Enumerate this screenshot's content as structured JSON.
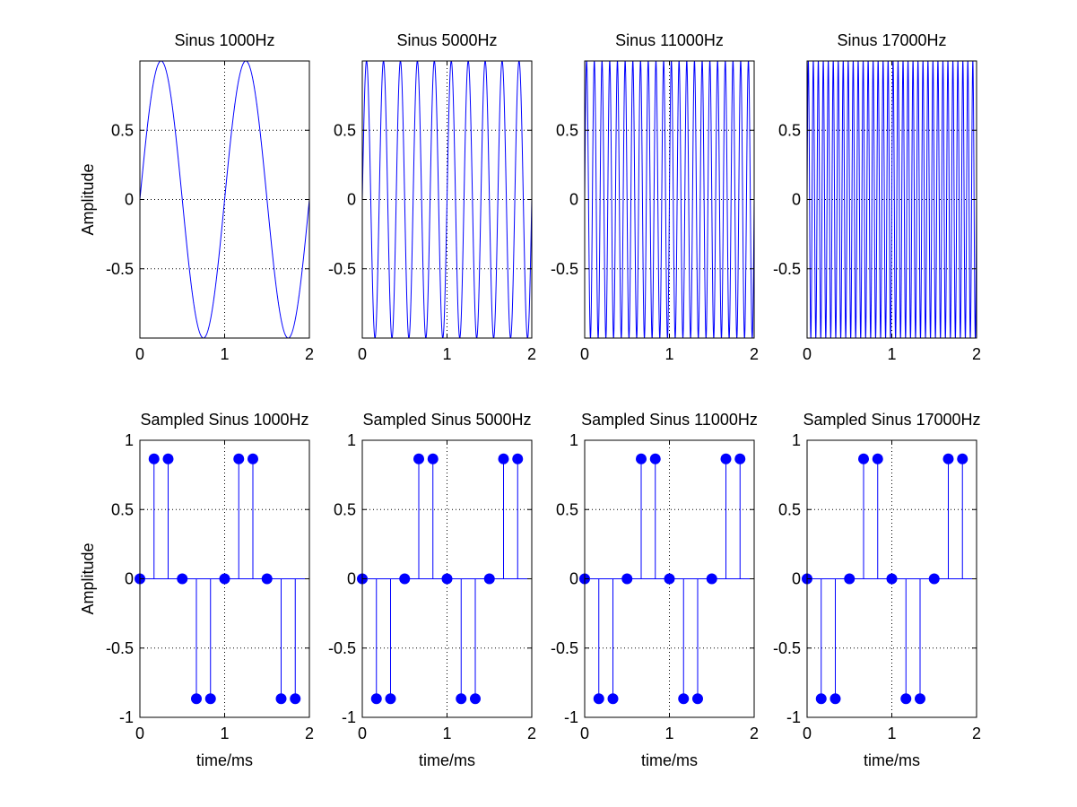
{
  "figure": {
    "colors": {
      "line": "#0000ff",
      "marker": "#0000ff",
      "axis": "#000000",
      "grid": "#000000",
      "background": "#ffffff"
    },
    "grid": true
  },
  "chart_data": [
    {
      "type": "line",
      "title": "Sinus 1000Hz",
      "xlabel": "",
      "ylabel": "Amplitude",
      "xlim": [
        0,
        2
      ],
      "ylim": [
        -1,
        1
      ],
      "xticks": [
        "0",
        "1",
        "2"
      ],
      "yticks": [
        "-0.5",
        "0",
        "0.5"
      ],
      "ytick_values": [
        -0.5,
        0,
        0.5
      ],
      "series": [
        {
          "function": "sin(2*pi*f*t)",
          "frequency_hz": 1000,
          "t_ms": [
            0,
            2
          ]
        }
      ]
    },
    {
      "type": "line",
      "title": "Sinus 5000Hz",
      "xlabel": "",
      "ylabel": "",
      "xlim": [
        0,
        2
      ],
      "ylim": [
        -1,
        1
      ],
      "xticks": [
        "0",
        "1",
        "2"
      ],
      "yticks": [
        "-0.5",
        "0",
        "0.5"
      ],
      "ytick_values": [
        -0.5,
        0,
        0.5
      ],
      "series": [
        {
          "function": "sin(2*pi*f*t)",
          "frequency_hz": 5000,
          "t_ms": [
            0,
            2
          ]
        }
      ]
    },
    {
      "type": "line",
      "title": "Sinus 11000Hz",
      "xlabel": "",
      "ylabel": "",
      "xlim": [
        0,
        2
      ],
      "ylim": [
        -1,
        1
      ],
      "xticks": [
        "0",
        "1",
        "2"
      ],
      "yticks": [
        "-0.5",
        "0",
        "0.5"
      ],
      "ytick_values": [
        -0.5,
        0,
        0.5
      ],
      "series": [
        {
          "function": "sin(2*pi*f*t)",
          "frequency_hz": 11000,
          "t_ms": [
            0,
            2
          ]
        }
      ]
    },
    {
      "type": "line",
      "title": "Sinus 17000Hz",
      "xlabel": "",
      "ylabel": "",
      "xlim": [
        0,
        2
      ],
      "ylim": [
        -1,
        1
      ],
      "xticks": [
        "0",
        "1",
        "2"
      ],
      "yticks": [
        "-0.5",
        "0",
        "0.5"
      ],
      "ytick_values": [
        -0.5,
        0,
        0.5
      ],
      "series": [
        {
          "function": "sin(2*pi*f*t)",
          "frequency_hz": 17000,
          "t_ms": [
            0,
            2
          ]
        }
      ]
    },
    {
      "type": "stem",
      "title": "Sampled Sinus 1000Hz",
      "xlabel": "time/ms",
      "ylabel": "Amplitude",
      "xlim": [
        0,
        2
      ],
      "ylim": [
        -1,
        1
      ],
      "xticks": [
        "0",
        "1",
        "2"
      ],
      "yticks": [
        "-1",
        "-0.5",
        "0",
        "0.5",
        "1"
      ],
      "ytick_values": [
        -1,
        -0.5,
        0,
        0.5,
        1
      ],
      "x": [
        0,
        0.1667,
        0.3333,
        0.5,
        0.6667,
        0.8333,
        1.0,
        1.1667,
        1.3333,
        1.5,
        1.6667,
        1.8333
      ],
      "values": [
        0,
        0.866,
        0.866,
        0,
        -0.866,
        -0.866,
        0,
        0.866,
        0.866,
        0,
        -0.866,
        -0.866
      ]
    },
    {
      "type": "stem",
      "title": "Sampled Sinus 5000Hz",
      "xlabel": "time/ms",
      "ylabel": "",
      "xlim": [
        0,
        2
      ],
      "ylim": [
        -1,
        1
      ],
      "xticks": [
        "0",
        "1",
        "2"
      ],
      "yticks": [
        "-1",
        "-0.5",
        "0",
        "0.5",
        "1"
      ],
      "ytick_values": [
        -1,
        -0.5,
        0,
        0.5,
        1
      ],
      "x": [
        0,
        0.1667,
        0.3333,
        0.5,
        0.6667,
        0.8333,
        1.0,
        1.1667,
        1.3333,
        1.5,
        1.6667,
        1.8333
      ],
      "values": [
        0,
        -0.866,
        -0.866,
        0,
        0.866,
        0.866,
        0,
        -0.866,
        -0.866,
        0,
        0.866,
        0.866
      ]
    },
    {
      "type": "stem",
      "title": "Sampled Sinus 11000Hz",
      "xlabel": "time/ms",
      "ylabel": "",
      "xlim": [
        0,
        2
      ],
      "ylim": [
        -1,
        1
      ],
      "xticks": [
        "0",
        "1",
        "2"
      ],
      "yticks": [
        "-1",
        "-0.5",
        "0",
        "0.5",
        "1"
      ],
      "ytick_values": [
        -1,
        -0.5,
        0,
        0.5,
        1
      ],
      "x": [
        0,
        0.1667,
        0.3333,
        0.5,
        0.6667,
        0.8333,
        1.0,
        1.1667,
        1.3333,
        1.5,
        1.6667,
        1.8333
      ],
      "values": [
        0,
        -0.866,
        -0.866,
        0,
        0.866,
        0.866,
        0,
        -0.866,
        -0.866,
        0,
        0.866,
        0.866
      ]
    },
    {
      "type": "stem",
      "title": "Sampled Sinus 17000Hz",
      "xlabel": "time/ms",
      "ylabel": "",
      "xlim": [
        0,
        2
      ],
      "ylim": [
        -1,
        1
      ],
      "xticks": [
        "0",
        "1",
        "2"
      ],
      "yticks": [
        "-1",
        "-0.5",
        "0",
        "0.5",
        "1"
      ],
      "ytick_values": [
        -1,
        -0.5,
        0,
        0.5,
        1
      ],
      "x": [
        0,
        0.1667,
        0.3333,
        0.5,
        0.6667,
        0.8333,
        1.0,
        1.1667,
        1.3333,
        1.5,
        1.6667,
        1.8333
      ],
      "values": [
        0,
        -0.866,
        -0.866,
        0,
        0.866,
        0.866,
        0,
        -0.866,
        -0.866,
        0,
        0.866,
        0.866
      ]
    }
  ]
}
